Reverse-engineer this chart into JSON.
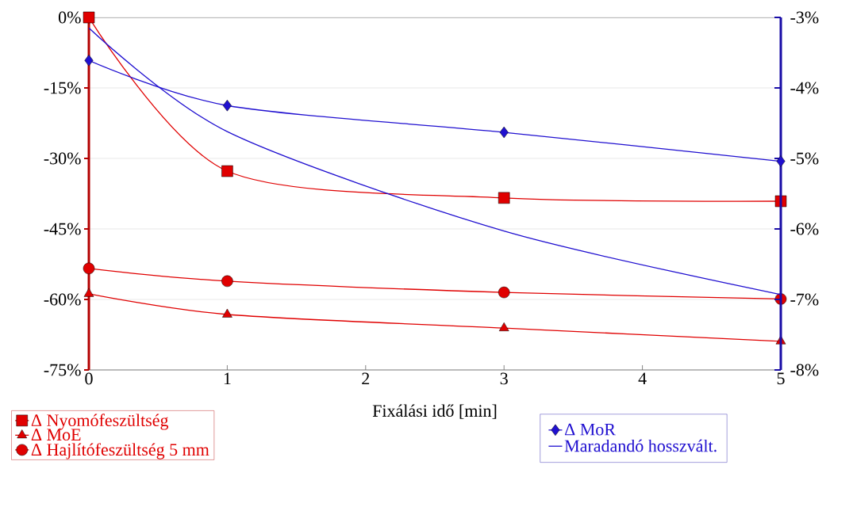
{
  "chart_data": {
    "type": "line",
    "xlabel": "Fixálási idő [min]",
    "x": [
      0,
      1,
      3,
      5
    ],
    "xlim": [
      0,
      5
    ],
    "xticks": [
      0,
      1,
      2,
      3,
      4,
      5
    ],
    "ylim": [
      -75,
      0
    ],
    "yticks": [
      {
        "value": -75,
        "label": "-75%"
      },
      {
        "value": -60,
        "label": "-60%"
      },
      {
        "value": -45,
        "label": "-45%"
      },
      {
        "value": -30,
        "label": "-30%"
      },
      {
        "value": -15,
        "label": "-15%"
      },
      {
        "value": 0,
        "label": "0%"
      }
    ],
    "y2lim": [
      -8,
      -3
    ],
    "y2ticks": [
      {
        "value": -8,
        "label": "-8%"
      },
      {
        "value": -7,
        "label": "-7%"
      },
      {
        "value": -6,
        "label": "-6%"
      },
      {
        "value": -5,
        "label": "-5%"
      },
      {
        "value": -4,
        "label": "-4%"
      },
      {
        "value": -3,
        "label": "-3%"
      }
    ],
    "grid": "y",
    "legend": "bottom",
    "series": [
      {
        "name": "Δ Nyomófeszültség",
        "color": "#e00000",
        "marker": "square",
        "values": [
          0,
          -32.7,
          -38.4,
          -39.1
        ]
      },
      {
        "name": "Δ MoE",
        "color": "#e00000",
        "marker": "triangle",
        "values": [
          -58.8,
          -63.2,
          -66.1,
          -68.9
        ]
      },
      {
        "name": "Δ Hajlítófeszültség  5 mm",
        "color": "#e00000",
        "marker": "circle",
        "values": [
          -53.4,
          -56.1,
          -58.5,
          -59.9
        ]
      },
      {
        "name": "Δ MoR",
        "color": "#2010d0",
        "marker": "diamond",
        "axis": "y2",
        "values": [
          -3.61,
          -4.25,
          -4.63,
          -5.04
        ]
      },
      {
        "name": "Maradandó hosszvált.",
        "color": "#2010d0",
        "marker": "none",
        "axis": "y2",
        "values": [
          -3.15,
          -4.62,
          -6.03,
          -6.93
        ]
      }
    ]
  }
}
